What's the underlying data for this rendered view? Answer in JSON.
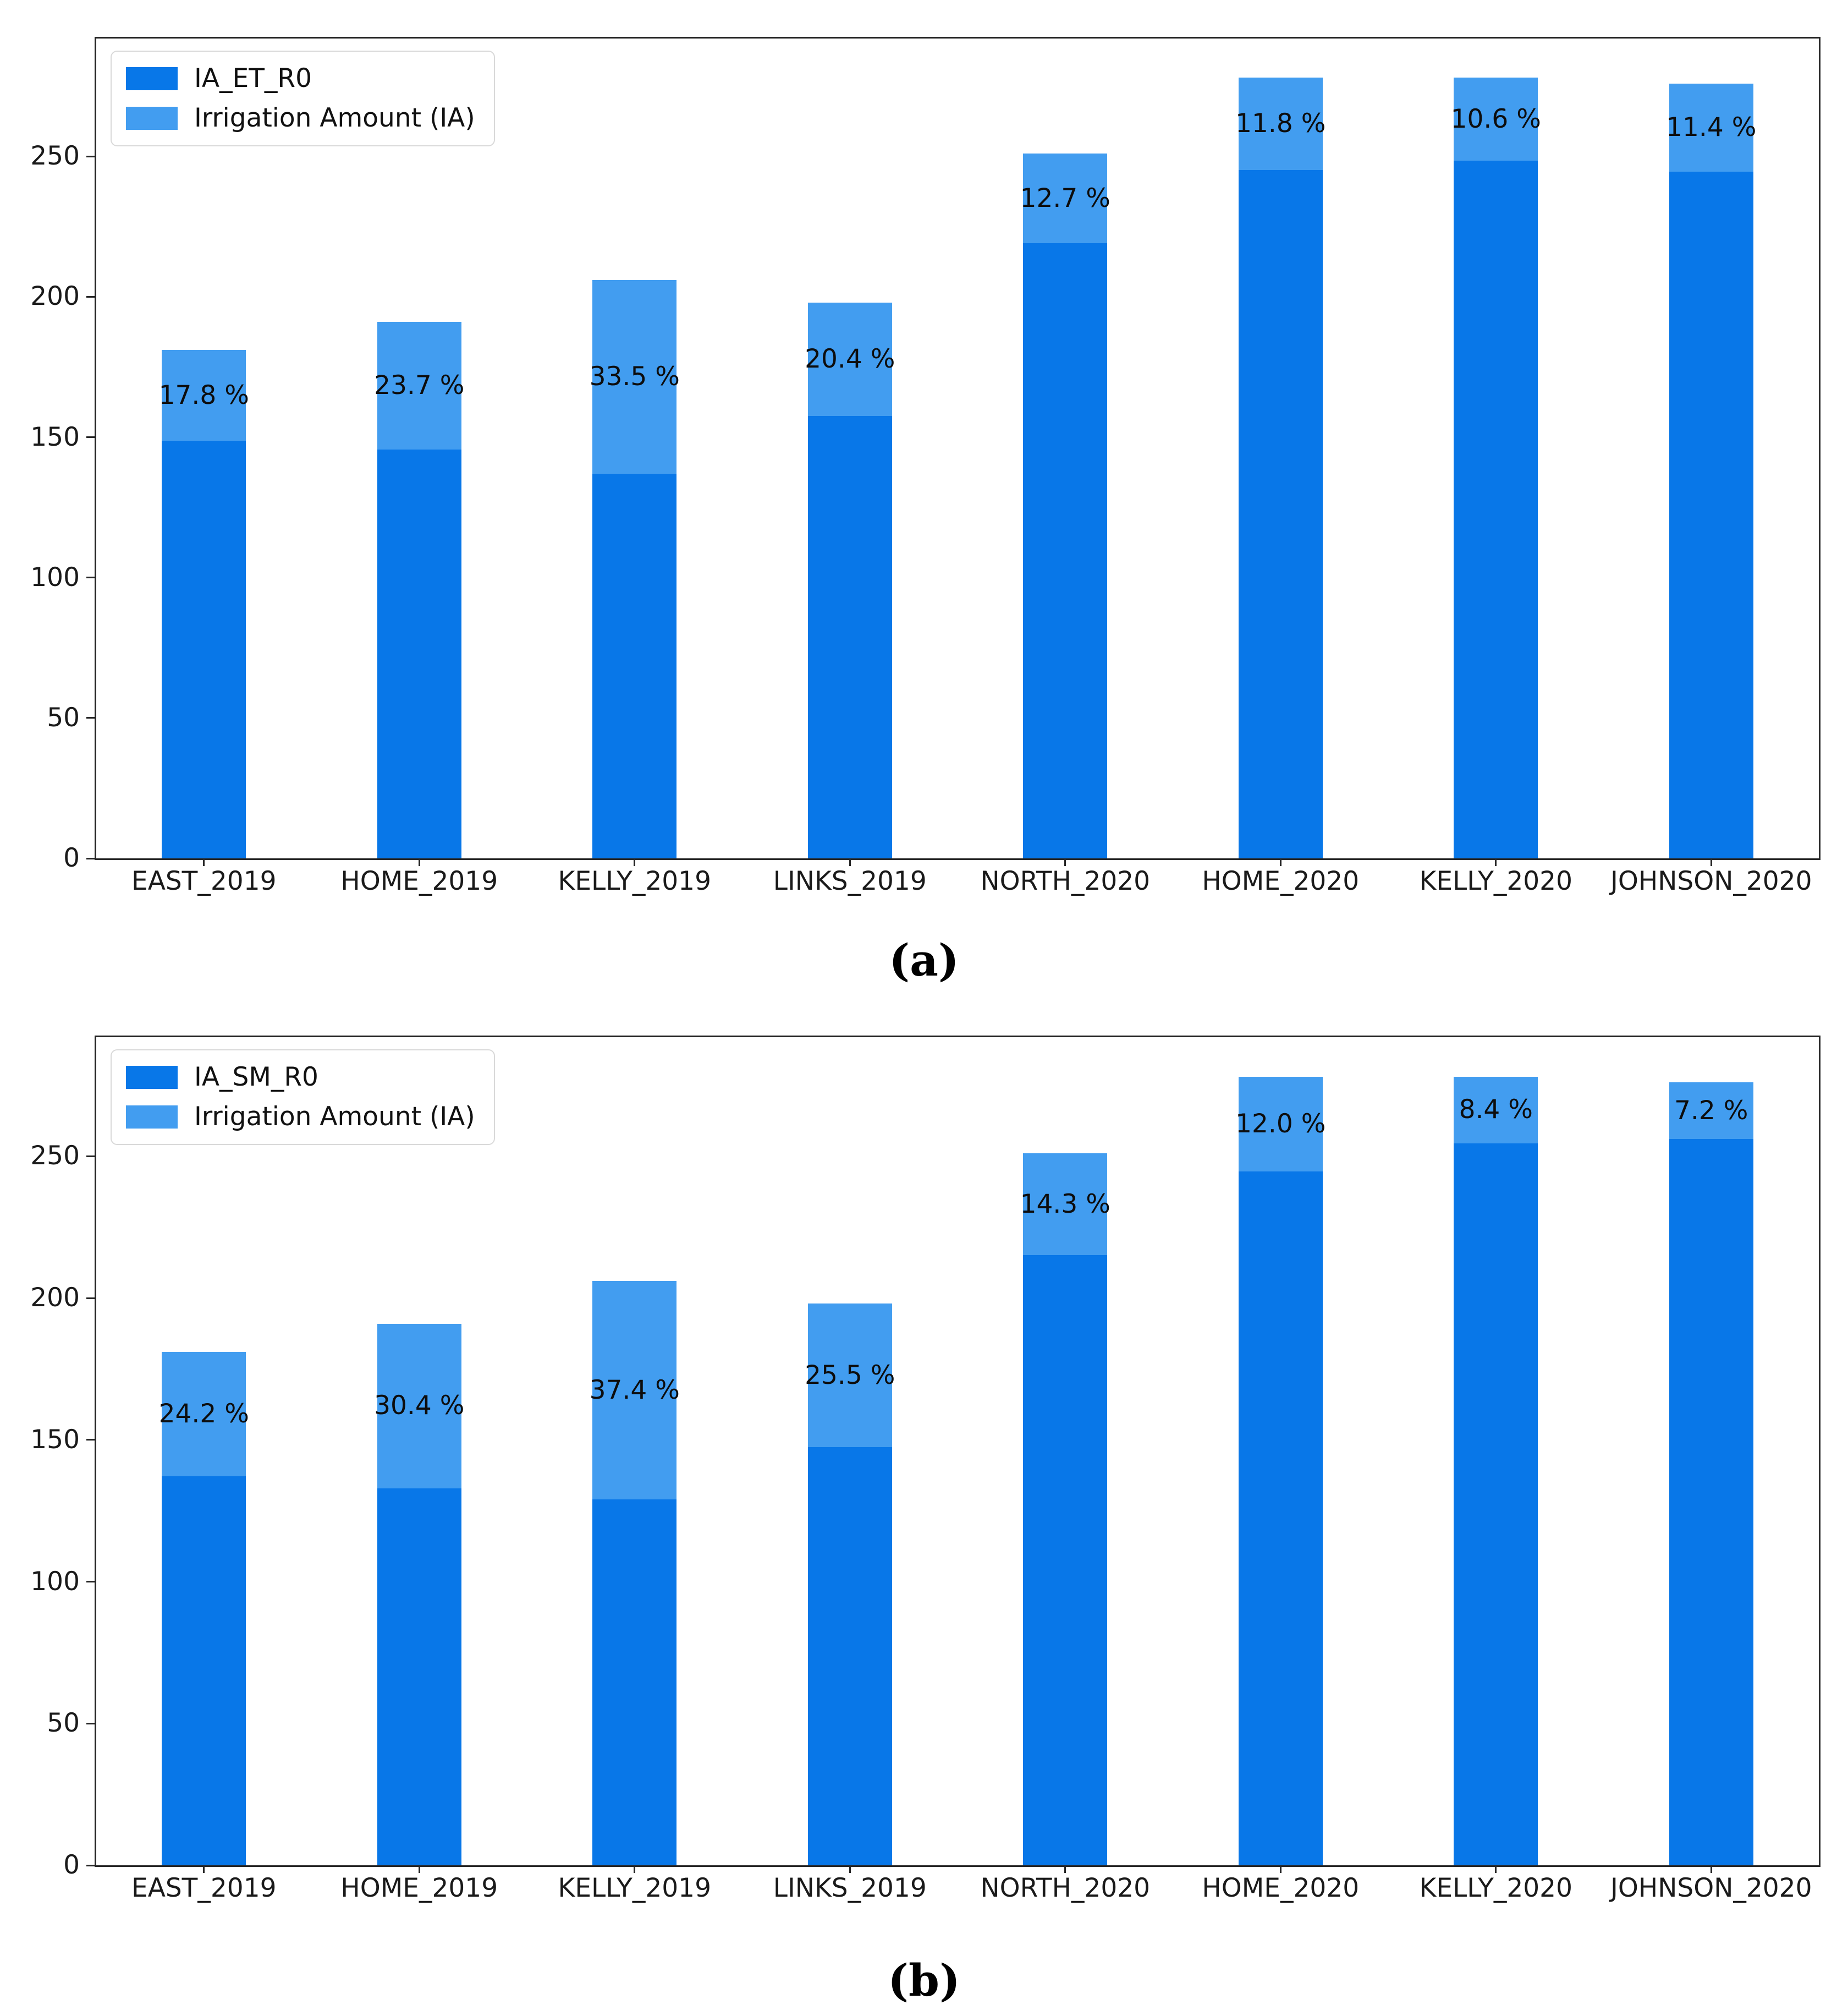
{
  "colors": {
    "dark_blue": "#0877e8",
    "light_blue": "#429df0",
    "axis": "#262626",
    "label_text": "#0d0d0d"
  },
  "chart_data": [
    {
      "id": "a",
      "type": "bar",
      "stacked": true,
      "caption": "(a)",
      "categories": [
        "EAST_2019",
        "HOME_2019",
        "KELLY_2019",
        "LINKS_2019",
        "NORTH_2020",
        "HOME_2020",
        "KELLY_2020",
        "JOHNSON_2020"
      ],
      "series": [
        {
          "name": "IA_ET_R0",
          "color": "#0877e8",
          "values": [
            148.8,
            145.7,
            137.0,
            157.6,
            219.1,
            245.2,
            248.5,
            244.5
          ]
        },
        {
          "name": "Irrigation Amount (IA)",
          "color": "#429df0",
          "values": [
            32.2,
            45.3,
            69.0,
            40.4,
            31.9,
            32.8,
            29.5,
            31.5
          ]
        }
      ],
      "totals": [
        181,
        191,
        206,
        198,
        251,
        278,
        278,
        276
      ],
      "bar_labels": [
        "17.8 %",
        "23.7 %",
        "33.5 %",
        "20.4 %",
        "12.7 %",
        "11.8 %",
        "10.6 %",
        "11.4 %"
      ],
      "xlabel": "",
      "ylabel": "",
      "ylim": [
        0,
        292
      ],
      "yticks": [
        0,
        50,
        100,
        150,
        200,
        250
      ],
      "grid": false,
      "legend_position": "upper-left"
    },
    {
      "id": "b",
      "type": "bar",
      "stacked": true,
      "caption": "(b)",
      "categories": [
        "EAST_2019",
        "HOME_2019",
        "KELLY_2019",
        "LINKS_2019",
        "NORTH_2020",
        "HOME_2020",
        "KELLY_2020",
        "JOHNSON_2020"
      ],
      "series": [
        {
          "name": "IA_SM_R0",
          "color": "#0877e8",
          "values": [
            137.2,
            132.9,
            129.0,
            147.5,
            215.1,
            244.6,
            254.6,
            256.1
          ]
        },
        {
          "name": "Irrigation Amount (IA)",
          "color": "#429df0",
          "values": [
            43.8,
            58.1,
            77.0,
            50.5,
            35.9,
            33.4,
            23.4,
            19.9
          ]
        }
      ],
      "totals": [
        181,
        191,
        206,
        198,
        251,
        278,
        278,
        276
      ],
      "bar_labels": [
        "24.2 %",
        "30.4 %",
        "37.4 %",
        "25.5 %",
        "14.3 %",
        "12.0 %",
        "8.4 %",
        "7.2 %"
      ],
      "xlabel": "",
      "ylabel": "",
      "ylim": [
        0,
        292
      ],
      "yticks": [
        0,
        50,
        100,
        150,
        200,
        250
      ],
      "grid": false,
      "legend_position": "upper-left"
    }
  ]
}
